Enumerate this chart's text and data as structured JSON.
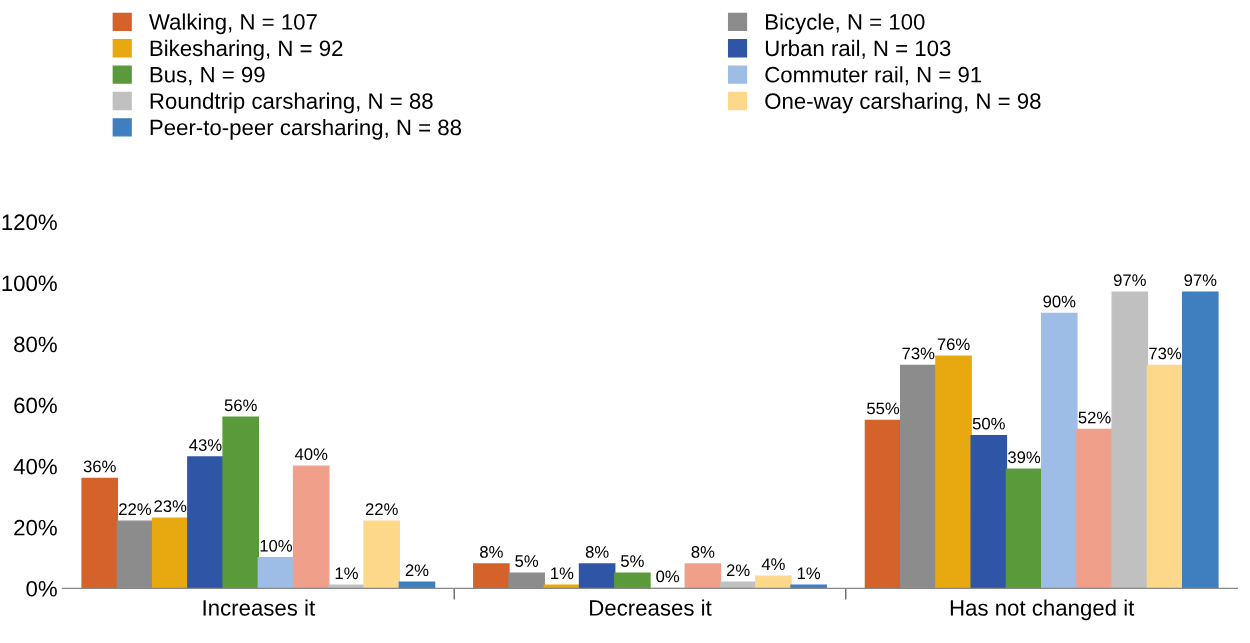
{
  "chart_data": {
    "type": "bar",
    "categories": [
      "Increases it",
      "Decreases it",
      "Has not changed it"
    ],
    "ylim": [
      0,
      120
    ],
    "yticks": [
      {
        "value": 0,
        "label": "0%"
      },
      {
        "value": 20,
        "label": "20%"
      },
      {
        "value": 40,
        "label": "40%"
      },
      {
        "value": 60,
        "label": "60%"
      },
      {
        "value": 80,
        "label": "80%"
      },
      {
        "value": 100,
        "label": "100%"
      },
      {
        "value": 120,
        "label": "120%"
      }
    ],
    "grid": false,
    "legend": "top",
    "series": [
      {
        "name": "Walking, N = 107",
        "color": "#d4622a",
        "values": [
          36,
          8,
          55
        ],
        "value_labels": [
          "36%",
          "8%",
          "55%"
        ]
      },
      {
        "name": "Bicycle, N = 100",
        "color": "#8c8c8c",
        "values": [
          22,
          5,
          73
        ],
        "value_labels": [
          "22%",
          "5%",
          "73%"
        ]
      },
      {
        "name": "Bikesharing, N = 92",
        "color": "#e8a910",
        "values": [
          23,
          1,
          76
        ],
        "value_labels": [
          "23%",
          "1%",
          "76%"
        ]
      },
      {
        "name": "Urban rail, N = 103",
        "color": "#2f56a6",
        "values": [
          43,
          8,
          50
        ],
        "value_labels": [
          "43%",
          "8%",
          "50%"
        ]
      },
      {
        "name": "Bus, N = 99",
        "color": "#5a9a3a",
        "values": [
          56,
          5,
          39
        ],
        "value_labels": [
          "56%",
          "5%",
          "39%"
        ]
      },
      {
        "name": "Commuter rail, N = 91",
        "color": "#9ebde6",
        "values": [
          10,
          0,
          90
        ],
        "value_labels": [
          "10%",
          "0%",
          "90%"
        ]
      },
      {
        "color": "#f0a08a",
        "values": [
          40,
          8,
          52
        ],
        "value_labels": [
          "40%",
          "8%",
          "52%"
        ]
      },
      {
        "name": "Roundtrip carsharing, N = 88",
        "color": "#c0c0c0",
        "values": [
          1,
          2,
          97
        ],
        "value_labels": [
          "1%",
          "2%",
          "97%"
        ]
      },
      {
        "name": "One-way carsharing, N = 98",
        "color": "#fdd88a",
        "values": [
          22,
          4,
          73
        ],
        "value_labels": [
          "22%",
          "4%",
          "73%"
        ]
      },
      {
        "name": "Peer-to-peer carsharing, N = 88",
        "color": "#3f7fbf",
        "values": [
          2,
          1,
          97
        ],
        "value_labels": [
          "2%",
          "1%",
          "97%"
        ]
      }
    ]
  }
}
